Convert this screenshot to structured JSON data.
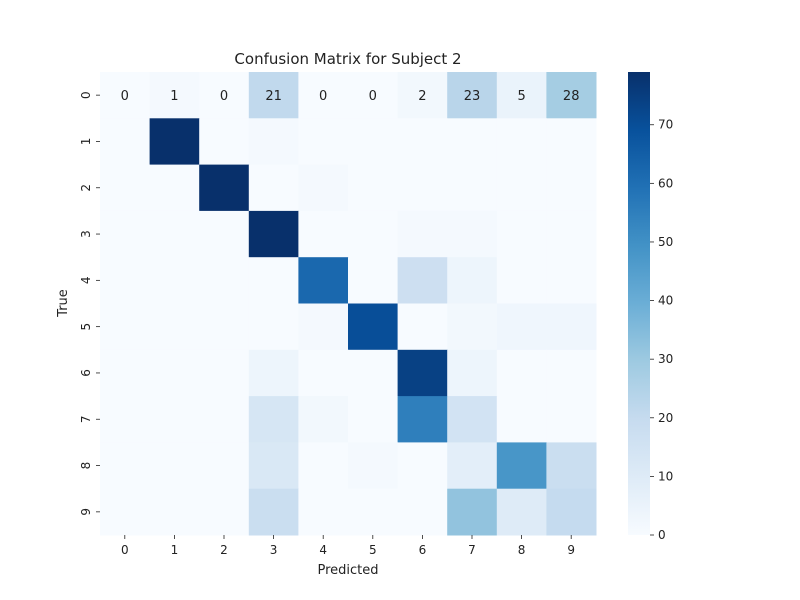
{
  "chart_data": {
    "type": "heatmap",
    "title": "Confusion Matrix for Subject 2",
    "xlabel": "Predicted",
    "ylabel": "True",
    "x_categories": [
      "0",
      "1",
      "2",
      "3",
      "4",
      "5",
      "6",
      "7",
      "8",
      "9"
    ],
    "y_categories": [
      "0",
      "1",
      "2",
      "3",
      "4",
      "5",
      "6",
      "7",
      "8",
      "9"
    ],
    "values": [
      [
        0,
        1,
        0,
        21,
        0,
        0,
        2,
        23,
        5,
        28
      ],
      [
        0,
        79,
        0,
        1,
        0,
        0,
        0,
        0,
        0,
        0
      ],
      [
        0,
        0,
        79,
        0,
        1,
        0,
        0,
        0,
        0,
        0
      ],
      [
        0,
        0,
        0,
        79,
        0,
        0,
        1,
        1,
        0,
        0
      ],
      [
        0,
        0,
        0,
        0,
        62,
        0,
        17,
        4,
        0,
        0
      ],
      [
        0,
        0,
        0,
        0,
        1,
        70,
        0,
        2,
        3,
        3
      ],
      [
        0,
        0,
        0,
        4,
        0,
        0,
        74,
        4,
        0,
        0
      ],
      [
        0,
        0,
        0,
        13,
        2,
        0,
        55,
        15,
        0,
        0
      ],
      [
        0,
        0,
        0,
        12,
        0,
        1,
        0,
        8,
        48,
        18
      ],
      [
        0,
        0,
        0,
        18,
        0,
        0,
        0,
        32,
        10,
        20
      ]
    ],
    "annotated_rows": [
      0
    ],
    "colormap": "Blues",
    "color_range": [
      0,
      79
    ],
    "colorbar_ticks": [
      0,
      10,
      20,
      30,
      40,
      50,
      60,
      70
    ],
    "grid": false
  }
}
